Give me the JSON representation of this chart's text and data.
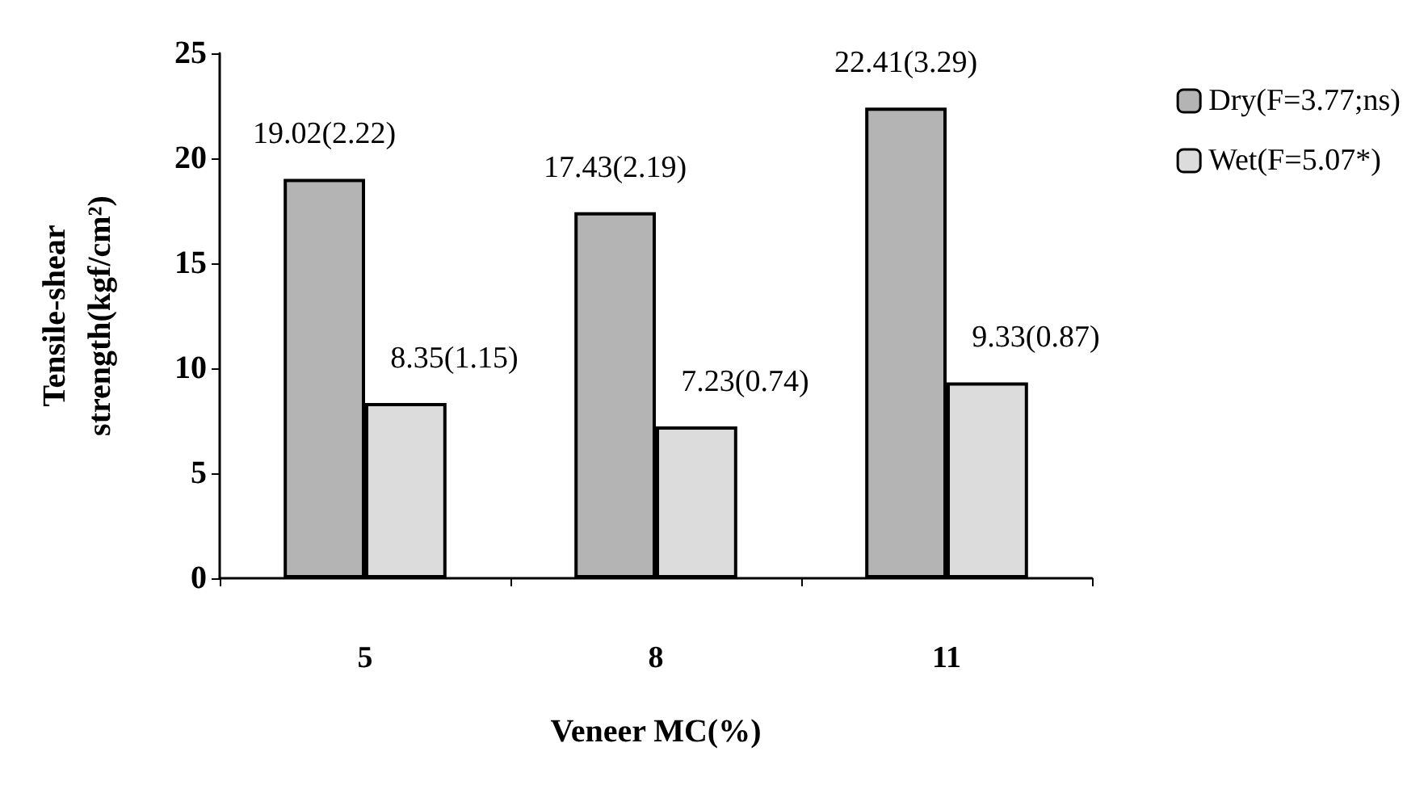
{
  "chart_data": {
    "type": "bar",
    "xlabel": "Veneer MC(%)",
    "ylabel": "Tensile-shear strength(kgf/cm²)",
    "categories": [
      "5",
      "8",
      "11"
    ],
    "series": [
      {
        "name": "Dry(F=3.77;ns)",
        "color": "#b4b4b4",
        "values": [
          19.02,
          17.43,
          22.41
        ],
        "value_labels": [
          "19.02(2.22)",
          "17.43(2.19)",
          "22.41(3.29)"
        ]
      },
      {
        "name": "Wet(F=5.07*)",
        "color": "#dcdcdc",
        "values": [
          8.35,
          7.23,
          9.33
        ],
        "value_labels": [
          "8.35(1.15)",
          "7.23(0.74)",
          "9.33(0.87)"
        ]
      }
    ],
    "ylim": [
      0,
      25
    ],
    "yticks": [
      0,
      5,
      10,
      15,
      20,
      25
    ],
    "grid": false,
    "legend": "right"
  }
}
